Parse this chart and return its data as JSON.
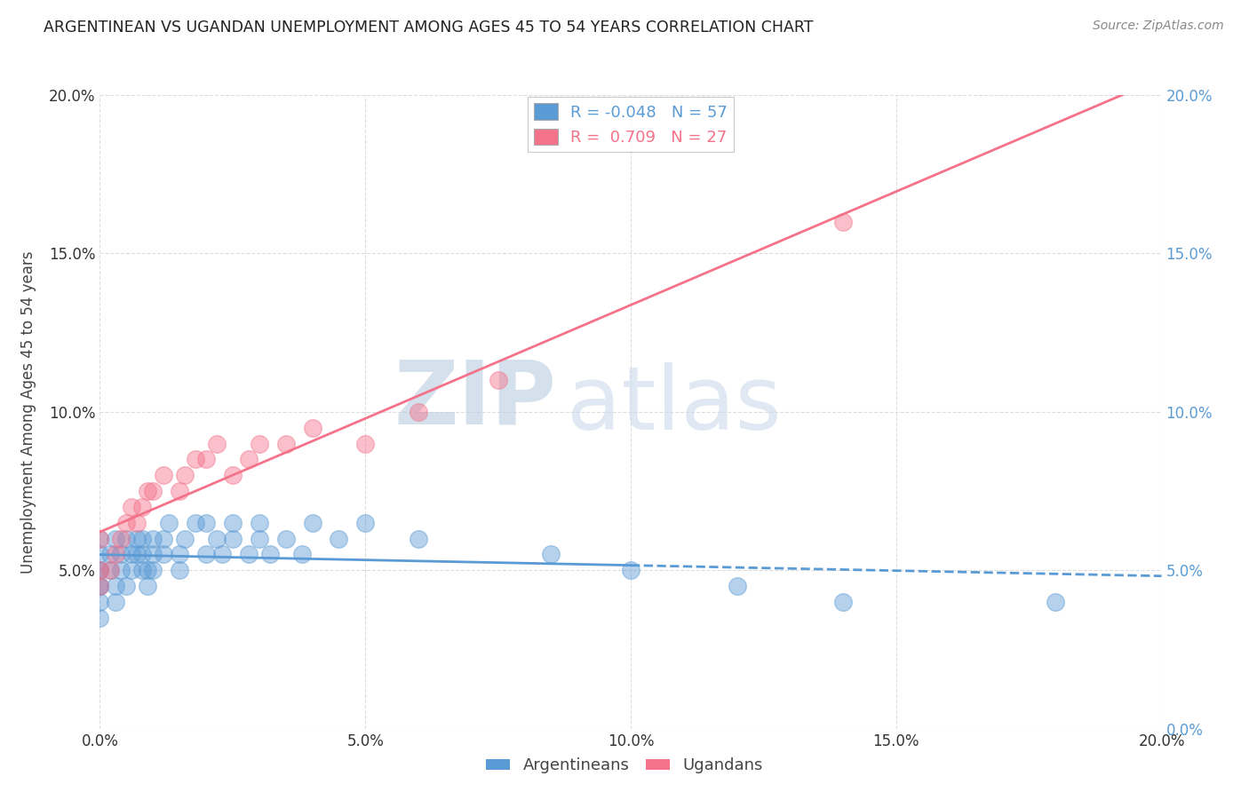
{
  "title": "ARGENTINEAN VS UGANDAN UNEMPLOYMENT AMONG AGES 45 TO 54 YEARS CORRELATION CHART",
  "source": "Source: ZipAtlas.com",
  "ylabel": "Unemployment Among Ages 45 to 54 years",
  "xlim": [
    0.0,
    0.2
  ],
  "ylim": [
    0.0,
    0.2
  ],
  "xticks": [
    0.0,
    0.05,
    0.1,
    0.15,
    0.2
  ],
  "yticks": [
    0.0,
    0.05,
    0.1,
    0.15,
    0.2
  ],
  "argentinean_color": "#5b9bd5",
  "ugandan_color": "#f4728a",
  "argentinean_R": -0.048,
  "argentinean_N": 57,
  "ugandan_R": 0.709,
  "ugandan_N": 27,
  "watermark_zip": "ZIP",
  "watermark_atlas": "atlas",
  "watermark_color": "#c8d8e8",
  "background_color": "#ffffff",
  "grid_color": "#dddddd",
  "right_tick_color": "#5b9bd5",
  "left_tick_color": "#555555",
  "argentinean_x": [
    0.0,
    0.0,
    0.0,
    0.0,
    0.0,
    0.0,
    0.0,
    0.0,
    0.002,
    0.002,
    0.003,
    0.003,
    0.003,
    0.004,
    0.004,
    0.005,
    0.005,
    0.006,
    0.006,
    0.007,
    0.007,
    0.008,
    0.008,
    0.008,
    0.009,
    0.009,
    0.01,
    0.01,
    0.01,
    0.012,
    0.012,
    0.013,
    0.015,
    0.015,
    0.016,
    0.018,
    0.02,
    0.02,
    0.022,
    0.023,
    0.025,
    0.025,
    0.028,
    0.03,
    0.03,
    0.032,
    0.035,
    0.038,
    0.04,
    0.045,
    0.05,
    0.06,
    0.085,
    0.1,
    0.12,
    0.14,
    0.18
  ],
  "argentinean_y": [
    0.05,
    0.05,
    0.045,
    0.055,
    0.06,
    0.045,
    0.04,
    0.035,
    0.05,
    0.055,
    0.06,
    0.045,
    0.04,
    0.055,
    0.05,
    0.06,
    0.045,
    0.055,
    0.05,
    0.06,
    0.055,
    0.05,
    0.055,
    0.06,
    0.05,
    0.045,
    0.055,
    0.06,
    0.05,
    0.055,
    0.06,
    0.065,
    0.05,
    0.055,
    0.06,
    0.065,
    0.055,
    0.065,
    0.06,
    0.055,
    0.06,
    0.065,
    0.055,
    0.06,
    0.065,
    0.055,
    0.06,
    0.055,
    0.065,
    0.06,
    0.065,
    0.06,
    0.055,
    0.05,
    0.045,
    0.04,
    0.04
  ],
  "ugandan_x": [
    0.0,
    0.0,
    0.0,
    0.002,
    0.003,
    0.004,
    0.005,
    0.006,
    0.007,
    0.008,
    0.009,
    0.01,
    0.012,
    0.015,
    0.016,
    0.018,
    0.02,
    0.022,
    0.025,
    0.028,
    0.03,
    0.035,
    0.04,
    0.05,
    0.06,
    0.075,
    0.14
  ],
  "ugandan_y": [
    0.045,
    0.05,
    0.06,
    0.05,
    0.055,
    0.06,
    0.065,
    0.07,
    0.065,
    0.07,
    0.075,
    0.075,
    0.08,
    0.075,
    0.08,
    0.085,
    0.085,
    0.09,
    0.08,
    0.085,
    0.09,
    0.09,
    0.095,
    0.09,
    0.1,
    0.11,
    0.16
  ]
}
